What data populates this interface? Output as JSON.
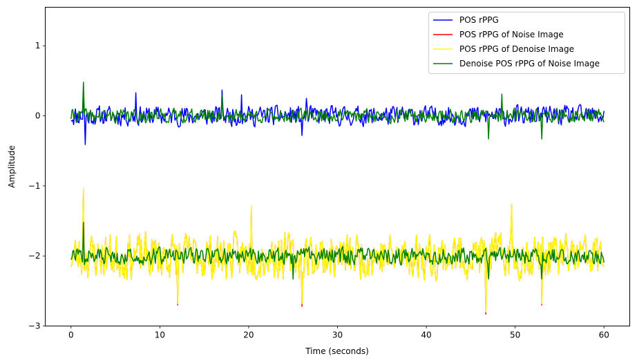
{
  "chart_data": {
    "type": "line",
    "title": "",
    "xlabel": "Time (seconds)",
    "ylabel": "Amplitude",
    "xlim": [
      -2.9,
      62.9
    ],
    "ylim": [
      -3.0,
      1.55
    ],
    "xticks": [
      0,
      10,
      20,
      30,
      40,
      50,
      60
    ],
    "xtick_labels": [
      "0",
      "10",
      "20",
      "30",
      "40",
      "50",
      "60"
    ],
    "yticks": [
      -3,
      -2,
      -1,
      0,
      1
    ],
    "ytick_labels": [
      "−3",
      "−2",
      "−1",
      "0",
      "1"
    ],
    "grid": false,
    "legend_position": "upper right",
    "sample_step_seconds": 0.1,
    "series": [
      {
        "name": "POS rPPG",
        "color": "#0000ff",
        "center": 0.0,
        "amplitude": 0.13,
        "seed": 11,
        "peaks": [
          [
            1.4,
            0.3
          ],
          [
            1.6,
            -0.41
          ],
          [
            7.3,
            0.33
          ],
          [
            17.0,
            0.37
          ],
          [
            19.2,
            0.3
          ],
          [
            26.5,
            0.25
          ],
          [
            26.0,
            -0.28
          ]
        ]
      },
      {
        "name": "POS rPPG of Noise Image",
        "color": "#ff0000",
        "center": -2.0,
        "amplitude": 0.3,
        "seed": 23,
        "peaks": [
          [
            1.4,
            0.95
          ],
          [
            12.0,
            -0.7
          ],
          [
            20.3,
            0.7
          ],
          [
            26.0,
            -0.72
          ],
          [
            46.7,
            -0.83
          ],
          [
            49.6,
            0.72
          ],
          [
            53.0,
            -0.7
          ]
        ]
      },
      {
        "name": " POS rPPG of Denoise Image",
        "color": "#ffff00",
        "center": -2.0,
        "amplitude": 0.3,
        "seed": 23,
        "peaks": [
          [
            1.4,
            0.97
          ],
          [
            12.0,
            -0.68
          ],
          [
            20.3,
            0.72
          ],
          [
            26.0,
            -0.68
          ],
          [
            46.7,
            -0.8
          ],
          [
            49.6,
            0.74
          ],
          [
            53.0,
            -0.68
          ]
        ]
      },
      {
        "name": "Denoise POS rPPG of Noise Image (top)",
        "legend_label": "Denoise POS rPPG of Noise Image",
        "color": "#008000",
        "center": 0.0,
        "amplitude": 0.09,
        "seed": 41,
        "peaks": [
          [
            1.4,
            0.48
          ],
          [
            17.0,
            0.3
          ],
          [
            47.0,
            -0.33
          ],
          [
            48.5,
            0.31
          ],
          [
            53.0,
            -0.33
          ]
        ]
      },
      {
        "name": "Denoise POS rPPG of Noise Image (bottom)",
        "legend_label": "",
        "color": "#008000",
        "center": -2.0,
        "amplitude": 0.11,
        "seed": 57,
        "peaks": [
          [
            1.4,
            0.48
          ],
          [
            25.0,
            -0.33
          ],
          [
            47.0,
            -0.33
          ],
          [
            53.0,
            -0.33
          ]
        ]
      }
    ]
  }
}
